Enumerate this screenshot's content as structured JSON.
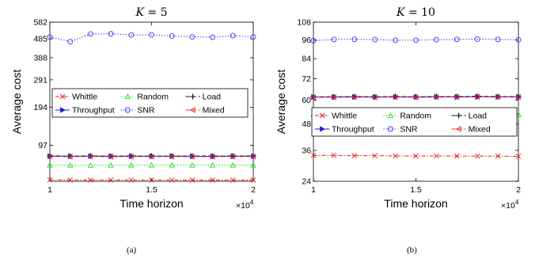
{
  "chart_data": [
    {
      "panel": "a",
      "type": "line",
      "title": "K = 5",
      "title_var": "K",
      "title_eq": " = 5",
      "xlabel": "Time horizon",
      "ylabel": "Average cost",
      "x_multiplier": "×10",
      "x_multiplier_exp": "4",
      "caption": "(a)",
      "xlim": [
        1,
        2
      ],
      "ylim": [
        40,
        582
      ],
      "yscale": "log",
      "xticks": [
        1,
        1.5,
        2
      ],
      "xtick_labels": [
        "1",
        "1.5",
        "2"
      ],
      "yticks": [
        97,
        194,
        291,
        388,
        485,
        582
      ],
      "ytick_labels": [
        "97",
        "194",
        "291",
        "388",
        "485",
        "582"
      ],
      "grid": false,
      "legend_position": "center",
      "x": [
        1,
        1.1,
        1.2,
        1.3,
        1.4,
        1.5,
        1.6,
        1.7,
        1.8,
        1.9,
        2.0
      ],
      "series": [
        {
          "name": "Whittle",
          "color": "#e8231e",
          "dash": "dashdot",
          "marker": "x",
          "values": [
            41.8,
            41.6,
            41.5,
            41.5,
            41.5,
            41.5,
            41.5,
            41.4,
            41.4,
            41.4,
            41.4
          ]
        },
        {
          "name": "Random",
          "color": "#22dd22",
          "dash": "dotted",
          "marker": "triangle-up",
          "values": [
            61.5,
            61.5,
            61.4,
            61.5,
            61.5,
            61.6,
            61.6,
            61.5,
            61.5,
            61.5,
            61.5
          ]
        },
        {
          "name": "Load",
          "color": "#000000",
          "dash": "dashed",
          "marker": "plus",
          "values": [
            76.8,
            76.6,
            76.8,
            76.5,
            76.8,
            76.6,
            76.7,
            76.6,
            76.5,
            76.8,
            76.7
          ]
        },
        {
          "name": "Throughput",
          "color": "#1c1cd6",
          "dash": "solid",
          "marker": "triangle-right",
          "values": [
            76.3,
            76.2,
            76.3,
            76.1,
            76.3,
            76.2,
            76.2,
            76.1,
            76.0,
            76.3,
            76.2
          ]
        },
        {
          "name": "SNR",
          "color": "#3a3aff",
          "dash": "dotted",
          "marker": "circle",
          "values": [
            495,
            470,
            512,
            513,
            507,
            507,
            501,
            496,
            494,
            503,
            496
          ]
        },
        {
          "name": "Mixed",
          "color": "#e8231e",
          "dash": "dashed",
          "marker": "triangle-left",
          "values": [
            75.8,
            75.6,
            75.8,
            75.5,
            75.8,
            75.6,
            75.7,
            75.6,
            75.5,
            75.8,
            75.7
          ]
        }
      ]
    },
    {
      "panel": "b",
      "type": "line",
      "title": "K = 10",
      "title_var": "K",
      "title_eq": " = 10",
      "xlabel": "Time horizon",
      "ylabel": "Average cost",
      "x_multiplier": "×10",
      "x_multiplier_exp": "4",
      "caption": "(b)",
      "xlim": [
        1,
        2
      ],
      "ylim": [
        24,
        108
      ],
      "yscale": "log",
      "xticks": [
        1,
        1.5,
        2
      ],
      "xtick_labels": [
        "1",
        "1.5",
        "2"
      ],
      "yticks": [
        24,
        36,
        48,
        60,
        72,
        84,
        96,
        108
      ],
      "ytick_labels": [
        "24",
        "36",
        "48",
        "60",
        "72",
        "84",
        "96",
        "108"
      ],
      "grid": false,
      "legend_position": "center",
      "x": [
        1,
        1.1,
        1.2,
        1.3,
        1.4,
        1.5,
        1.6,
        1.7,
        1.8,
        1.9,
        2.0
      ],
      "series": [
        {
          "name": "Whittle",
          "color": "#e8231e",
          "dash": "dashdot",
          "marker": "x",
          "values": [
            33.9,
            33.9,
            33.8,
            33.8,
            33.7,
            33.7,
            33.7,
            33.6,
            33.6,
            33.6,
            33.5
          ]
        },
        {
          "name": "Random",
          "color": "#22dd22",
          "dash": "dotted",
          "marker": "triangle-up",
          "values": [
            52.5,
            52.5,
            52.6,
            52.5,
            52.6,
            52.5,
            52.6,
            52.6,
            52.7,
            52.6,
            52.6
          ]
        },
        {
          "name": "Load",
          "color": "#000000",
          "dash": "dashed",
          "marker": "plus",
          "values": [
            61.9,
            61.9,
            62.0,
            61.9,
            62.0,
            61.9,
            62.0,
            62.0,
            62.1,
            62.0,
            62.0
          ]
        },
        {
          "name": "Throughput",
          "color": "#1c1cd6",
          "dash": "solid",
          "marker": "triangle-right",
          "values": [
            61.7,
            61.7,
            61.8,
            61.7,
            61.8,
            61.7,
            61.8,
            61.8,
            61.9,
            61.8,
            61.8
          ]
        },
        {
          "name": "SNR",
          "color": "#3a3aff",
          "dash": "dotted",
          "marker": "circle",
          "values": [
            95.5,
            96.3,
            96.4,
            96.2,
            95.8,
            95.8,
            96.2,
            96.3,
            96.5,
            96.3,
            96.1
          ]
        },
        {
          "name": "Mixed",
          "color": "#e8231e",
          "dash": "dashed",
          "marker": "triangle-left",
          "values": [
            61.6,
            61.6,
            61.7,
            61.6,
            61.7,
            61.6,
            61.7,
            61.7,
            61.8,
            61.7,
            61.7
          ]
        }
      ]
    }
  ]
}
